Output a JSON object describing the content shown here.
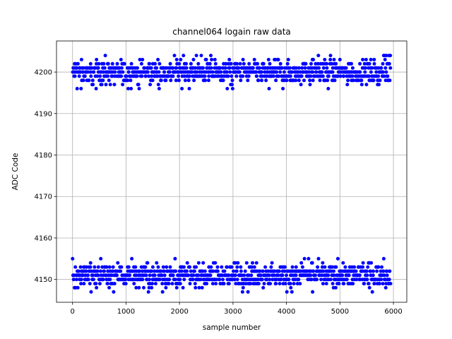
{
  "chart_data": {
    "type": "scatter",
    "title": "channel064 logain raw data",
    "xlabel": "sample number",
    "ylabel": "ADC Code",
    "xlim": [
      -300,
      6250
    ],
    "ylim": [
      4144.5,
      4207.5
    ],
    "xticks": [
      0,
      1000,
      2000,
      3000,
      4000,
      5000,
      6000
    ],
    "yticks": [
      4150,
      4160,
      4170,
      4180,
      4190,
      4200
    ],
    "grid": true,
    "marker_color": "#0000ff",
    "marker": "circle",
    "n_samples": 5950,
    "series": [
      {
        "values_description": "upper cluster",
        "y_range": [
          4196,
          4204
        ],
        "y_center": 4200.5,
        "samples_range": [
          0,
          5950
        ]
      },
      {
        "values_description": "lower cluster",
        "y_range": [
          4147,
          4155
        ],
        "y_center": 4151,
        "samples_range": [
          0,
          5950
        ]
      }
    ]
  }
}
